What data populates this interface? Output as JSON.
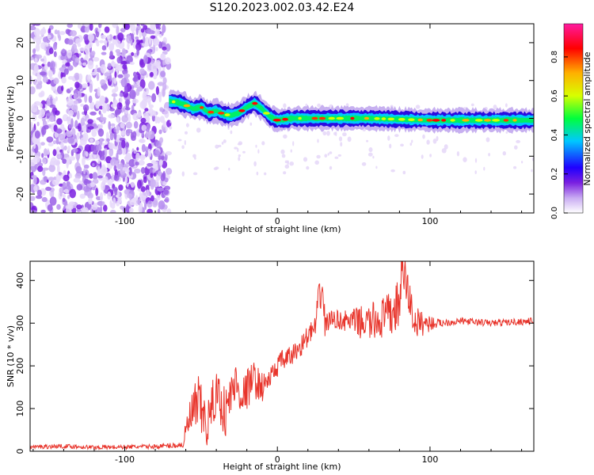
{
  "title": "S120.2023.002.03.42.E24",
  "colors": {
    "snr_line": "#e8342b",
    "axis": "#000000",
    "colormap": [
      "#ffffff",
      "#c8aaf2",
      "#7a1fe0",
      "#1f00ff",
      "#00c8ff",
      "#00ff3c",
      "#d8ff00",
      "#ffb000",
      "#ff0000",
      "#ff1aa0"
    ]
  },
  "chart_data": [
    {
      "type": "heatmap",
      "xlabel": "Height of straight line (km)",
      "ylabel": "Frequency (Hz)",
      "xlim": [
        -162,
        168
      ],
      "ylim": [
        -25,
        25
      ],
      "xticks": [
        -100,
        0,
        100
      ],
      "xtick_labels": [
        "-100",
        "0",
        "100"
      ],
      "yticks": [
        -20,
        -10,
        0,
        10,
        20
      ],
      "ytick_labels": [
        "-20",
        "-10",
        "0",
        "10",
        "20"
      ],
      "noise_region_x": [
        -162,
        -71
      ],
      "tone_centerline": {
        "x": [
          -71,
          -66,
          -60,
          -55,
          -50,
          -45,
          -40,
          -35,
          -30,
          -25,
          -20,
          -15,
          -10,
          -5,
          0,
          10,
          30,
          60,
          100,
          140,
          168
        ],
        "y": [
          4.5,
          4.3,
          3.5,
          2.5,
          3.0,
          1.5,
          2.0,
          1.0,
          0.8,
          1.5,
          3.0,
          4.0,
          2.5,
          0.5,
          -0.5,
          0.0,
          0.0,
          0.0,
          -0.5,
          -0.5,
          -0.5
        ]
      },
      "colorbar": {
        "label": "Normalized spectral amplitude",
        "range": [
          0,
          0.97
        ],
        "ticks": [
          0.0,
          0.2,
          0.4,
          0.6,
          0.8
        ],
        "tick_labels": [
          "0.0",
          "0.2",
          "0.4",
          "0.6",
          "0.8"
        ]
      }
    },
    {
      "type": "line",
      "xlabel": "Height of straight line (km)",
      "ylabel": "SNR (10 * v/v)",
      "xlim": [
        -162,
        168
      ],
      "ylim": [
        0,
        445
      ],
      "xticks": [
        -100,
        0,
        100
      ],
      "xtick_labels": [
        "-100",
        "0",
        "100"
      ],
      "yticks": [
        0,
        100,
        200,
        300,
        400
      ],
      "ytick_labels": [
        "0",
        "100",
        "200",
        "300",
        "400"
      ],
      "series": [
        {
          "x": [
            -162,
            -140,
            -120,
            -100,
            -80,
            -62,
            -58,
            -52,
            -46,
            -40,
            -34,
            -28,
            -22,
            -16,
            -10,
            -4,
            2,
            8,
            14,
            20,
            25,
            29,
            31,
            35,
            45,
            60,
            75,
            80,
            82,
            90,
            105,
            120,
            140,
            168
          ],
          "y": [
            10,
            12,
            9,
            10,
            11,
            15,
            70,
            110,
            60,
            140,
            90,
            160,
            130,
            170,
            150,
            175,
            210,
            220,
            240,
            270,
            290,
            400,
            300,
            310,
            305,
            300,
            320,
            350,
            430,
            300,
            300,
            305,
            300,
            305
          ],
          "amp": [
            5,
            5,
            5,
            5,
            5,
            8,
            50,
            70,
            55,
            60,
            60,
            55,
            50,
            45,
            35,
            25,
            25,
            25,
            25,
            25,
            30,
            60,
            40,
            20,
            25,
            45,
            55,
            60,
            60,
            40,
            10,
            8,
            8,
            8
          ]
        }
      ]
    }
  ]
}
